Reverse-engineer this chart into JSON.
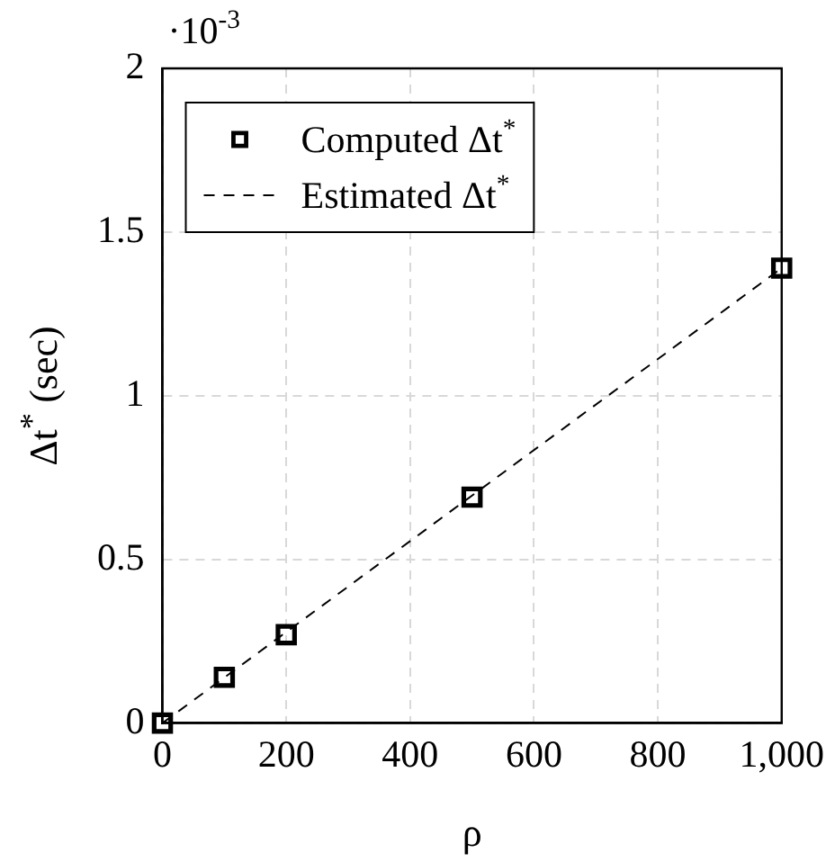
{
  "chart_data": {
    "type": "scatter",
    "xlabel": "ρ",
    "ylabel": "Δt$^{*}$ (sec)",
    "xlim": [
      0,
      1000
    ],
    "xticks": [
      0,
      200,
      400,
      600,
      800,
      {
        "value": 1000,
        "label": "1,000"
      }
    ],
    "ylim": [
      0,
      2
    ],
    "yticks": [
      0,
      0.5,
      1,
      1.5,
      2
    ],
    "annotations": [
      "·10$^{-3}$"
    ],
    "grid": true,
    "legend": "top left",
    "series": [
      {
        "name": "Computed Δt$^{*}$",
        "color": "#000000",
        "marker": "square",
        "x": [
          0,
          100,
          200,
          500,
          1000
        ],
        "values": [
          0,
          0.14,
          0.27,
          0.69,
          1.39
        ]
      },
      {
        "name": "Estimated Δt$^{*}$",
        "type": "line",
        "color": "#000000",
        "line_style": "dashed",
        "marker": "none",
        "x": [
          0,
          1000
        ],
        "values": [
          0,
          1.39
        ]
      }
    ]
  }
}
